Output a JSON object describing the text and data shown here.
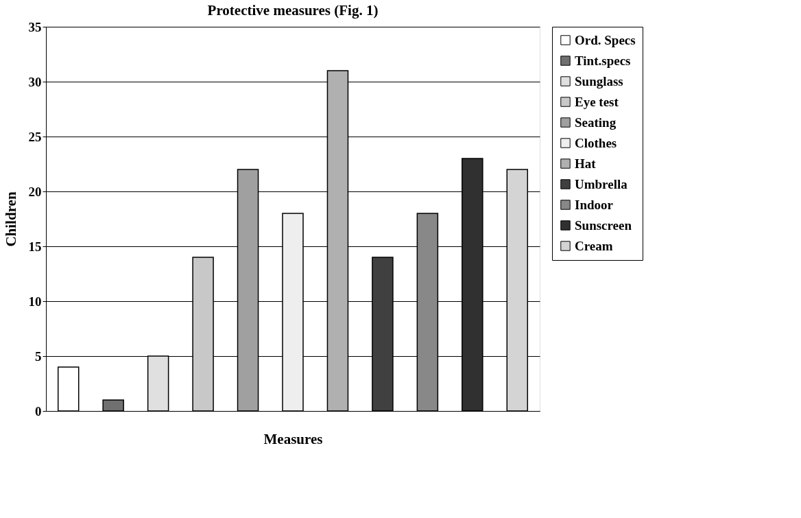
{
  "chart_data": {
    "type": "bar",
    "title": "Protective measures (Fig. 1)",
    "xlabel": "Measures",
    "ylabel": "Children",
    "categories": [
      null,
      null,
      null,
      null,
      null,
      null,
      null,
      null,
      null,
      null,
      null
    ],
    "ylim": [
      0,
      35
    ],
    "yticks": [
      0,
      5,
      10,
      15,
      20,
      25,
      30,
      35
    ],
    "grid": "y",
    "legend": "right",
    "tick_labels": "y",
    "series": [
      {
        "name": "Ord. Specs",
        "color": "#ffffff",
        "values": [
          4,
          null,
          null,
          null,
          null,
          null,
          null,
          null,
          null,
          null,
          null
        ]
      },
      {
        "name": "Tint.specs",
        "color": "#707070",
        "values": [
          null,
          1,
          null,
          null,
          null,
          null,
          null,
          null,
          null,
          null,
          null
        ]
      },
      {
        "name": "Sunglass",
        "color": "#e0e0e0",
        "values": [
          null,
          null,
          5,
          null,
          null,
          null,
          null,
          null,
          null,
          null,
          null
        ]
      },
      {
        "name": "Eye test",
        "color": "#c8c8c8",
        "values": [
          null,
          null,
          null,
          14,
          null,
          null,
          null,
          null,
          null,
          null,
          null
        ]
      },
      {
        "name": "Seating",
        "color": "#a0a0a0",
        "values": [
          null,
          null,
          null,
          null,
          22,
          null,
          null,
          null,
          null,
          null,
          null
        ]
      },
      {
        "name": "Clothes",
        "color": "#eeeeee",
        "values": [
          null,
          null,
          null,
          null,
          null,
          18,
          null,
          null,
          null,
          null,
          null
        ]
      },
      {
        "name": "Hat",
        "color": "#b0b0b0",
        "values": [
          null,
          null,
          null,
          null,
          null,
          null,
          31,
          null,
          null,
          null,
          null
        ]
      },
      {
        "name": "Umbrella",
        "color": "#404040",
        "values": [
          null,
          null,
          null,
          null,
          null,
          null,
          null,
          14,
          null,
          null,
          null
        ]
      },
      {
        "name": "Indoor",
        "color": "#888888",
        "values": [
          null,
          null,
          null,
          null,
          null,
          null,
          null,
          null,
          18,
          null,
          null
        ]
      },
      {
        "name": "Sunscreen",
        "color": "#303030",
        "values": [
          null,
          null,
          null,
          null,
          null,
          null,
          null,
          null,
          null,
          23,
          null
        ]
      },
      {
        "name": "Cream",
        "color": "#d4d4d4",
        "values": [
          null,
          null,
          null,
          null,
          null,
          null,
          null,
          null,
          null,
          null,
          22
        ]
      }
    ]
  }
}
